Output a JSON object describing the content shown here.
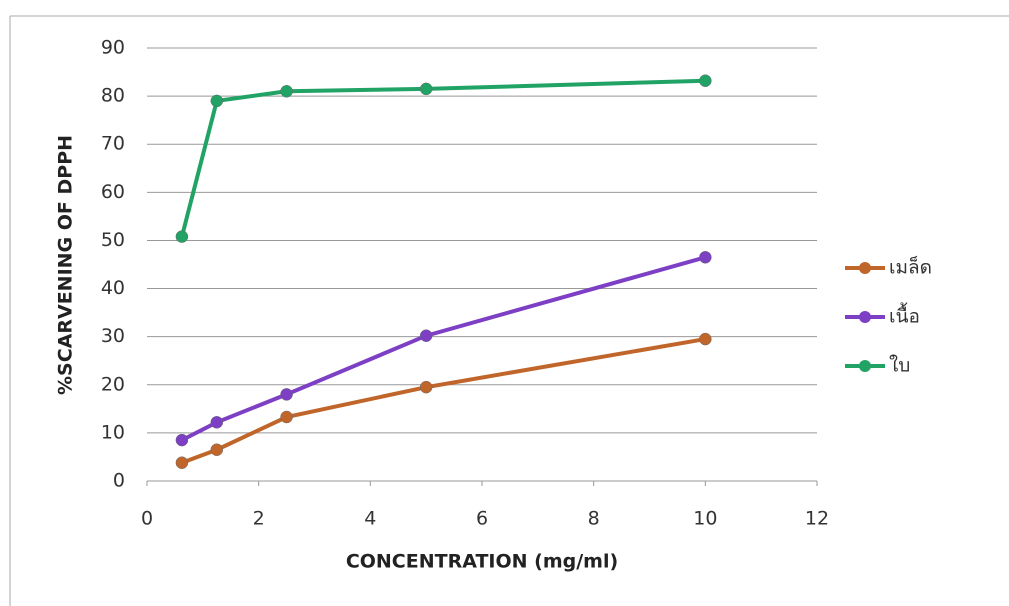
{
  "chart_data": {
    "type": "line",
    "x_label": "CONCENTRATION (mg/ml)",
    "y_label": "%SCARVENING OF DPPH",
    "x": [
      0.625,
      1.25,
      2.5,
      5,
      10
    ],
    "series": [
      {
        "name": "เมล็ด",
        "color": "#c0662b",
        "values": [
          3.8,
          6.5,
          13.3,
          19.5,
          29.5
        ]
      },
      {
        "name": "เนื้อ",
        "color": "#7d3fc4",
        "values": [
          8.5,
          12.2,
          18,
          30.2,
          46.5
        ]
      },
      {
        "name": "ใบ",
        "color": "#21a366",
        "values": [
          50.8,
          79,
          81,
          81.5,
          83.2
        ]
      }
    ],
    "xlim": [
      0,
      12
    ],
    "xticks": [
      0,
      2,
      4,
      6,
      8,
      10,
      12
    ],
    "ylim": [
      0,
      90
    ],
    "yticks": [
      0,
      10,
      20,
      30,
      40,
      50,
      60,
      70,
      80,
      90
    ],
    "grid": true,
    "legend": "right"
  }
}
